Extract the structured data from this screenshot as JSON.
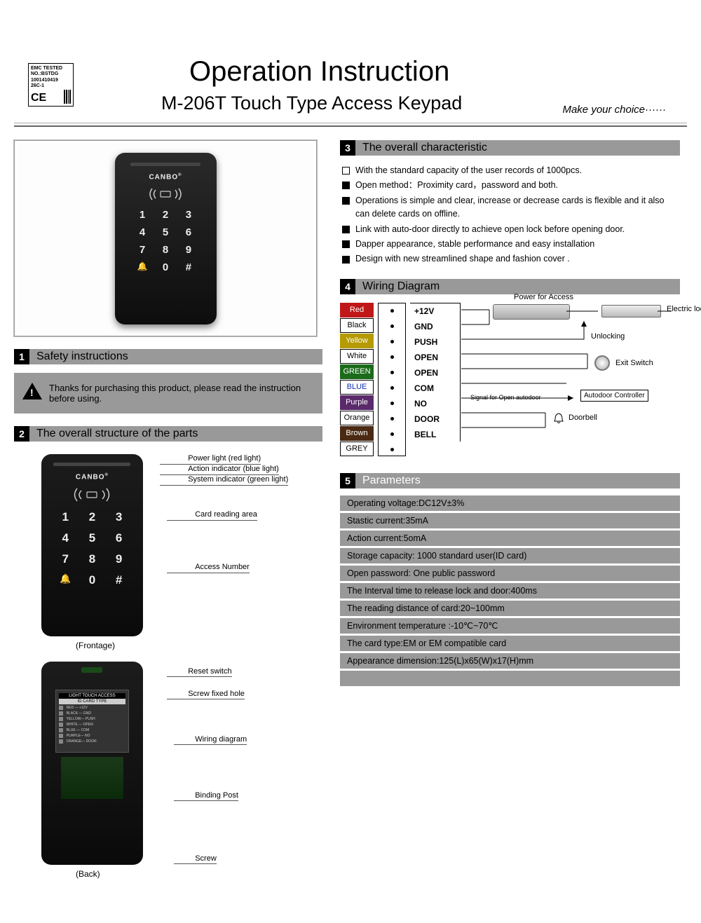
{
  "badge": {
    "line1": "EMC TESTED",
    "line2": "NO.:BSTDG",
    "line3": "1001410419",
    "line4": "26C-1",
    "mark": "CE"
  },
  "header": {
    "title": "Operation Instruction",
    "subtitle": "M-206T  Touch Type Access Keypad",
    "tagline": "Make  your choice······"
  },
  "brand": "CANBO",
  "keypad": {
    "keys": [
      "1",
      "2",
      "3",
      "4",
      "5",
      "6",
      "7",
      "8",
      "9",
      "🔔",
      "0",
      "#"
    ]
  },
  "sections": {
    "s1": {
      "num": "1",
      "label": "Safety instructions"
    },
    "s2": {
      "num": "2",
      "label": "The overall structure of the parts"
    },
    "s3": {
      "num": "3",
      "label": "The overall characteristic"
    },
    "s4": {
      "num": "4",
      "label": "Wiring Diagram"
    },
    "s5": {
      "num": "5",
      "label": "Parameters"
    }
  },
  "safety": "Thanks for purchasing this product, please read the instruction before using.",
  "front_callouts": {
    "power": "Power light (red light)",
    "action": "Action indicator (blue light)",
    "system": "System indicator (green light)",
    "card": "Card  reading  area",
    "access": "Access  Number",
    "caption": "(Frontage)"
  },
  "back_callouts": {
    "reset": "Reset switch",
    "screwhole": "Screw fixed hole",
    "wiring": "Wiring diagram",
    "binding": "Binding  Post",
    "screw": "Screw",
    "caption": "(Back)"
  },
  "back_plate": {
    "hdr": "LIGHT TOUCH ACCESS",
    "hdr2": "ID CARD TYPE"
  },
  "characteristics": [
    "With the standard capacity of the user records of  1000pcs.",
    "Open method：Proximity card，password and both.",
    "Operations is simple and clear, increase or decrease cards is flexible and it also can delete cards on offline.",
    "Link with auto-door directly to achieve open lock before opening door.",
    "Dapper appearance, stable performance and easy installation",
    "Design with new streamlined shape  and fashion cover ."
  ],
  "wiring": {
    "colors": [
      {
        "name": "Red",
        "bg": "#c01818",
        "fg": "#ffffff"
      },
      {
        "name": "Black",
        "bg": "#ffffff",
        "fg": "#000000",
        "border": "#000"
      },
      {
        "name": "Yellow",
        "bg": "#b59a00",
        "fg": "#ffffff"
      },
      {
        "name": "White",
        "bg": "#ffffff",
        "fg": "#000000",
        "border": "#000"
      },
      {
        "name": "GREEN",
        "bg": "#1b6b1b",
        "fg": "#ffffff"
      },
      {
        "name": "BLUE",
        "bg": "#ffffff",
        "fg": "#1030b0",
        "border": "#000"
      },
      {
        "name": "Purple",
        "bg": "#5a2a6b",
        "fg": "#ffffff"
      },
      {
        "name": "Orange",
        "bg": "#ffffff",
        "fg": "#000000",
        "border": "#000"
      },
      {
        "name": "Brown",
        "bg": "#4a2a12",
        "fg": "#ffffff"
      },
      {
        "name": "GREY",
        "bg": "#ffffff",
        "fg": "#000000",
        "border": "#000"
      }
    ],
    "labels": [
      "+12V",
      "GND",
      "PUSH",
      "OPEN",
      "OPEN",
      "COM",
      "NO",
      "DOOR",
      "BELL"
    ],
    "notes": {
      "power": "Power for Access",
      "elock": "Electric lock",
      "unlock": "Unlocking",
      "exit": "Exit Switch",
      "signal": "Signal for Open  autodoor",
      "autodoor": "Autodoor Controller",
      "doorbell": "Doorbell"
    }
  },
  "parameters": [
    "Operating voltage:DC12V±3%",
    "Stastic  current:35mA",
    "Action current:5omA",
    "Storage capacity: 1000 standard user(ID card)",
    "Open password: One  public password",
    "The Interval time to  release  lock and door:400ms",
    "The reading distance of card:20~100mm",
    "Environment temperature :-10℃~70℃",
    "The card type:EM or EM compatible card",
    "Appearance dimension:125(L)x65(W)x17(H)mm",
    ""
  ]
}
